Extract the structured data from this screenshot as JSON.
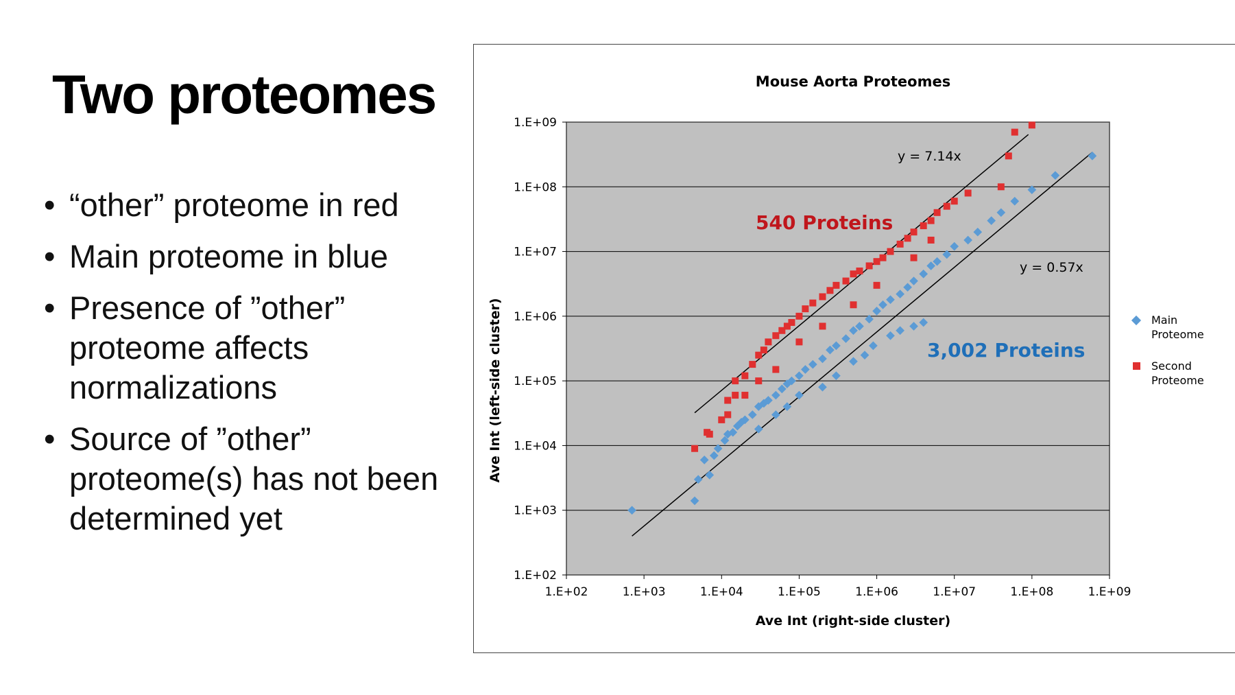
{
  "slide": {
    "title": "Two proteomes",
    "bullets": [
      "“other” proteome in red",
      " Main proteome in blue",
      "Presence of ”other” proteome affects normalizations",
      "Source of ”other” proteome(s) has not been determined yet"
    ],
    "bullet_glyph": "•"
  },
  "chart_data": {
    "type": "scatter",
    "title": "Mouse Aorta Proteomes",
    "xlabel": "Ave Int (right-side cluster)",
    "ylabel": "Ave Int (left-side cluster)",
    "xscale": "log",
    "yscale": "log",
    "xlim": [
      100,
      1000000000
    ],
    "ylim": [
      100,
      1000000000
    ],
    "xticks": [
      "1.E+02",
      "1.E+03",
      "1.E+04",
      "1.E+05",
      "1.E+06",
      "1.E+07",
      "1.E+08",
      "1.E+09"
    ],
    "yticks": [
      "1.E+09",
      "1.E+08",
      "1.E+07",
      "1.E+06",
      "1.E+05",
      "1.E+04",
      "1.E+03",
      "1.E+02"
    ],
    "grid": "horizontal",
    "plot_background": "#c0c0c0",
    "legend_position": "right",
    "series": [
      {
        "name": "Main Proteome",
        "color": "#5b9bd5",
        "marker": "diamond",
        "count_label": "3,002 Proteins",
        "count_label_color": "#1f6fb8",
        "trend_label": "y = 0.57x",
        "trend_slope": 0.57,
        "points": [
          [
            700,
            1000
          ],
          [
            4500,
            1400
          ],
          [
            5000,
            3000
          ],
          [
            6000,
            6000
          ],
          [
            7000,
            3500
          ],
          [
            8000,
            7000
          ],
          [
            9000,
            9000
          ],
          [
            11000,
            12000
          ],
          [
            12000,
            15000
          ],
          [
            14000,
            16000
          ],
          [
            16000,
            20000
          ],
          [
            18000,
            23000
          ],
          [
            20000,
            25000
          ],
          [
            25000,
            30000
          ],
          [
            30000,
            40000
          ],
          [
            35000,
            45000
          ],
          [
            40000,
            50000
          ],
          [
            50000,
            60000
          ],
          [
            60000,
            75000
          ],
          [
            70000,
            90000
          ],
          [
            80000,
            100000
          ],
          [
            100000,
            120000
          ],
          [
            120000,
            150000
          ],
          [
            150000,
            180000
          ],
          [
            200000,
            220000
          ],
          [
            250000,
            300000
          ],
          [
            300000,
            350000
          ],
          [
            400000,
            450000
          ],
          [
            500000,
            600000
          ],
          [
            600000,
            700000
          ],
          [
            800000,
            900000
          ],
          [
            1000000,
            1200000
          ],
          [
            1200000,
            1500000
          ],
          [
            1500000,
            1800000
          ],
          [
            2000000,
            2200000
          ],
          [
            2500000,
            2800000
          ],
          [
            3000000,
            3500000
          ],
          [
            4000000,
            4500000
          ],
          [
            5000000,
            6000000
          ],
          [
            6000000,
            7000000
          ],
          [
            8000000,
            9000000
          ],
          [
            10000000,
            12000000
          ],
          [
            15000000,
            15000000
          ],
          [
            20000000,
            20000000
          ],
          [
            30000000,
            30000000
          ],
          [
            40000000,
            40000000
          ],
          [
            60000000,
            60000000
          ],
          [
            100000000,
            90000000
          ],
          [
            200000000,
            150000000
          ],
          [
            600000000,
            300000000
          ],
          [
            4000000,
            800000
          ],
          [
            3000000,
            700000
          ],
          [
            2000000,
            600000
          ],
          [
            1500000,
            500000
          ],
          [
            900000,
            350000
          ],
          [
            700000,
            250000
          ],
          [
            500000,
            200000
          ],
          [
            300000,
            120000
          ],
          [
            200000,
            80000
          ],
          [
            100000,
            60000
          ],
          [
            70000,
            40000
          ],
          [
            50000,
            30000
          ],
          [
            30000,
            18000
          ]
        ]
      },
      {
        "name": "Second Proteome",
        "color": "#e03030",
        "marker": "square",
        "count_label": "540 Proteins",
        "count_label_color": "#c0161c",
        "trend_label": "y = 7.14x",
        "trend_slope": 7.14,
        "points": [
          [
            4500,
            9000
          ],
          [
            6500,
            16000
          ],
          [
            7000,
            15000
          ],
          [
            10000,
            25000
          ],
          [
            12000,
            30000
          ],
          [
            12000,
            50000
          ],
          [
            15000,
            60000
          ],
          [
            15000,
            100000
          ],
          [
            20000,
            120000
          ],
          [
            25000,
            180000
          ],
          [
            30000,
            250000
          ],
          [
            35000,
            300000
          ],
          [
            40000,
            400000
          ],
          [
            50000,
            500000
          ],
          [
            60000,
            600000
          ],
          [
            70000,
            700000
          ],
          [
            80000,
            800000
          ],
          [
            100000,
            1000000
          ],
          [
            120000,
            1300000
          ],
          [
            150000,
            1600000
          ],
          [
            200000,
            2000000
          ],
          [
            250000,
            2500000
          ],
          [
            300000,
            3000000
          ],
          [
            400000,
            3500000
          ],
          [
            500000,
            4500000
          ],
          [
            600000,
            5000000
          ],
          [
            800000,
            6000000
          ],
          [
            1000000,
            7000000
          ],
          [
            1200000,
            8000000
          ],
          [
            1500000,
            10000000
          ],
          [
            2000000,
            13000000
          ],
          [
            2500000,
            16000000
          ],
          [
            3000000,
            20000000
          ],
          [
            4000000,
            25000000
          ],
          [
            5000000,
            30000000
          ],
          [
            6000000,
            40000000
          ],
          [
            8000000,
            50000000
          ],
          [
            10000000,
            60000000
          ],
          [
            15000000,
            80000000
          ],
          [
            40000000,
            100000000
          ],
          [
            50000000,
            300000000
          ],
          [
            60000000,
            700000000
          ],
          [
            100000000,
            900000000
          ],
          [
            5000000,
            15000000
          ],
          [
            3000000,
            8000000
          ],
          [
            1000000,
            3000000
          ],
          [
            500000,
            1500000
          ],
          [
            200000,
            700000
          ],
          [
            100000,
            400000
          ],
          [
            50000,
            150000
          ],
          [
            30000,
            100000
          ],
          [
            20000,
            60000
          ]
        ]
      }
    ]
  }
}
